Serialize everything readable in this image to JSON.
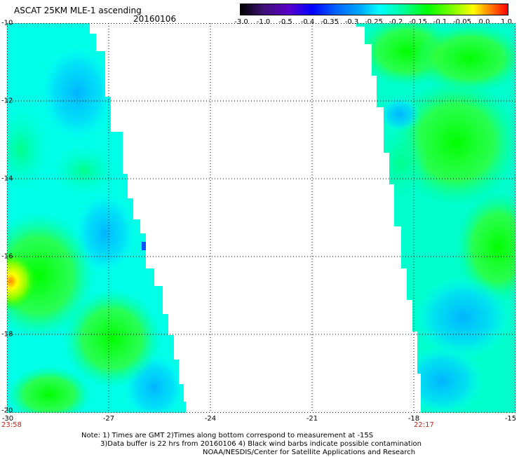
{
  "header": {
    "title": "ASCAT 25KM MLE-1 ascending",
    "date": "20160106"
  },
  "colorbar": {
    "labels": [
      "-3.0",
      "-1.0",
      "-0.5",
      "-0.4",
      "-0.35",
      "-0.3",
      "-0.25",
      "-0.2",
      "-0.15",
      "-0.1",
      "-0.05",
      "0.0",
      "1.0"
    ],
    "colors": [
      "#000000",
      "#3a0f6e",
      "#5a00c8",
      "#0000ff",
      "#0066ff",
      "#00aaff",
      "#00ffff",
      "#00ff99",
      "#00ff00",
      "#88ff00",
      "#ffff00",
      "#ff8800",
      "#ff0000"
    ]
  },
  "axes": {
    "lat_labels": [
      "-10",
      "-12",
      "-14",
      "-16",
      "-18",
      "-20"
    ],
    "lon_labels": [
      "-30",
      "-27",
      "-24",
      "-21",
      "-18",
      "-15"
    ],
    "lat_range": [
      -20,
      -10
    ],
    "lon_range": [
      -30,
      -15
    ]
  },
  "times": {
    "left": "23:58",
    "right": "22:17"
  },
  "note": {
    "line1": "Note: 1) Times are GMT 2)Times along bottom correspond to measurement at -15S",
    "line2": "3)Data buffer is 22 hrs from 20160106 4) Black wind barbs indicate possible contamination",
    "line3": "NOAA/NESDIS/Center for Satellite Applications and Research"
  },
  "colors": {
    "cyan": "#00ffff",
    "light_blue": "#00ccff",
    "aqua_green": "#00ff99",
    "green": "#00ff00",
    "yellow_green": "#88ff00",
    "yellow": "#ffff00",
    "orange": "#ff8800",
    "blue": "#0066ff"
  }
}
